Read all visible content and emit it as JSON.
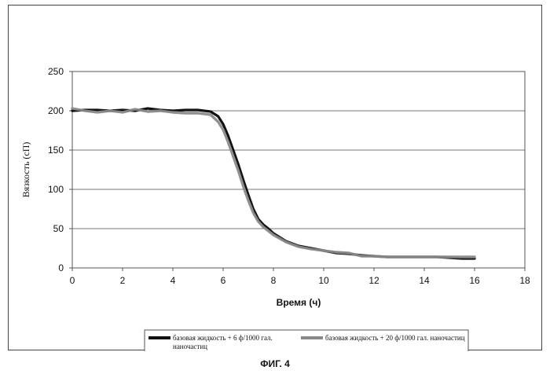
{
  "chart_data": {
    "type": "line",
    "xlabel": "Время (ч)",
    "ylabel": "Вязкость (сП)",
    "xlim": [
      0,
      18
    ],
    "ylim": [
      0,
      250
    ],
    "xticks": [
      0,
      2,
      4,
      6,
      8,
      10,
      12,
      14,
      16,
      18
    ],
    "yticks": [
      0,
      50,
      100,
      150,
      200,
      250
    ],
    "grid": "horizontal",
    "legend_position": "bottom",
    "series": [
      {
        "name": "базовая жидкость + 6 ф/1000 гал. наночастиц",
        "color": "#111111",
        "x": [
          0,
          0.5,
          1,
          1.5,
          2,
          2.5,
          3,
          3.5,
          4,
          4.5,
          5,
          5.5,
          5.8,
          6.0,
          6.2,
          6.4,
          6.6,
          6.8,
          7.0,
          7.2,
          7.4,
          7.6,
          7.8,
          8.0,
          8.5,
          9,
          9.5,
          10,
          10.5,
          11,
          11.5,
          12,
          12.5,
          13,
          13.5,
          14,
          14.5,
          15,
          15.5,
          16
        ],
        "y": [
          200,
          201,
          201,
          200,
          201,
          200,
          203,
          201,
          200,
          201,
          201,
          199,
          193,
          183,
          168,
          150,
          132,
          112,
          93,
          75,
          62,
          55,
          50,
          44,
          34,
          28,
          25,
          22,
          19,
          18,
          16,
          15,
          14,
          14,
          14,
          14,
          14,
          13,
          12,
          12
        ]
      },
      {
        "name": "базовая жидкость + 20 ф/1000 гал. наночастиц",
        "color": "#8a8a8a",
        "x": [
          0,
          0.5,
          1,
          1.5,
          2,
          2.5,
          3,
          3.5,
          4,
          4.5,
          5,
          5.5,
          5.8,
          6.0,
          6.2,
          6.4,
          6.6,
          6.8,
          7.0,
          7.2,
          7.4,
          7.6,
          7.8,
          8.0,
          8.5,
          9,
          9.5,
          10,
          10.5,
          11,
          11.5,
          12,
          12.5,
          13,
          13.5,
          14,
          14.5,
          15,
          15.5,
          16
        ],
        "y": [
          203,
          200,
          198,
          200,
          198,
          202,
          199,
          200,
          198,
          197,
          197,
          195,
          186,
          176,
          160,
          142,
          124,
          104,
          86,
          70,
          59,
          52,
          47,
          42,
          33,
          27,
          24,
          22,
          20,
          19,
          15,
          15,
          14,
          14,
          14,
          14,
          14,
          14,
          14,
          14
        ]
      }
    ]
  },
  "figure": {
    "caption": "ФИГ. 4"
  }
}
